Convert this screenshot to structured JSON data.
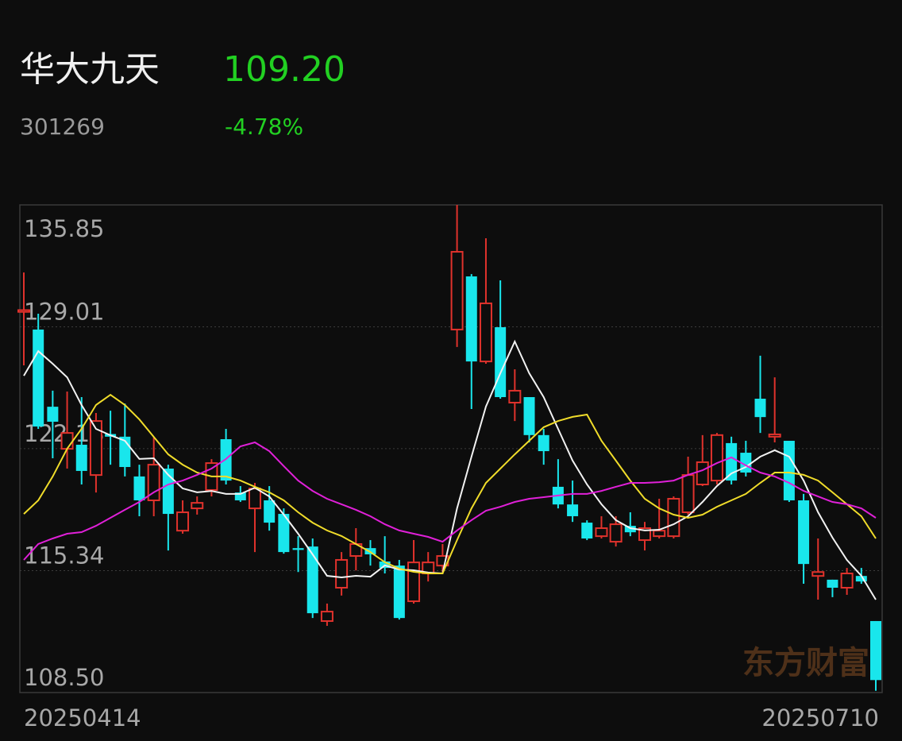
{
  "header": {
    "name": "华大九天",
    "price": "109.20",
    "code": "301269",
    "change": "-4.78%"
  },
  "watermark": "东方财富",
  "chart_data": {
    "type": "candlestick",
    "categories": [
      "20250414",
      null,
      null,
      null,
      null,
      null,
      null,
      null,
      null,
      null,
      null,
      null,
      null,
      null,
      null,
      null,
      null,
      null,
      null,
      null,
      null,
      null,
      null,
      null,
      null,
      null,
      null,
      null,
      null,
      null,
      null,
      null,
      null,
      null,
      null,
      null,
      null,
      null,
      null,
      null,
      null,
      null,
      null,
      null,
      null,
      null,
      null,
      null,
      null,
      null,
      null,
      null,
      null,
      null,
      null,
      null,
      null,
      null,
      null,
      "20250710"
    ],
    "open": [
      129.85,
      128.86,
      124.53,
      122.17,
      122.4,
      120.7,
      123.0,
      122.85,
      120.62,
      119.28,
      121.06,
      117.58,
      118.83,
      119.86,
      122.71,
      119.72,
      118.83,
      119.28,
      118.52,
      116.6,
      116.69,
      112.51,
      114.38,
      116.16,
      116.6,
      115.85,
      115.62,
      113.62,
      115.18,
      115.62,
      128.86,
      131.84,
      127.07,
      128.99,
      124.76,
      125.07,
      122.94,
      120.04,
      119.05,
      118.03,
      117.27,
      116.96,
      117.85,
      117.05,
      117.27,
      117.27,
      118.61,
      120.17,
      120.39,
      122.49,
      121.95,
      124.98,
      122.85,
      122.62,
      119.28,
      115.04,
      114.83,
      114.38,
      115.04,
      112.51
    ],
    "high": [
      132.06,
      129.75,
      125.43,
      125.38,
      125.07,
      124.18,
      124.31,
      124.71,
      121.28,
      122.85,
      121.28,
      119.28,
      119.5,
      121.59,
      123.29,
      120.08,
      120.26,
      120.08,
      118.83,
      117.27,
      117.14,
      113.49,
      116.38,
      117.72,
      117.05,
      117.27,
      115.94,
      117.05,
      116.38,
      116.83,
      135.85,
      131.97,
      133.98,
      131.62,
      126.63,
      125.07,
      123.29,
      121.59,
      120.39,
      118.16,
      118.39,
      118.39,
      118.61,
      118.07,
      119.37,
      119.5,
      121.73,
      122.94,
      123.06,
      122.85,
      122.62,
      127.39,
      126.18,
      122.62,
      119.64,
      117.14,
      114.83,
      115.49,
      115.49,
      112.51
    ],
    "low": [
      126.85,
      123.29,
      121.64,
      121.06,
      120.17,
      119.72,
      121.28,
      120.62,
      118.39,
      118.39,
      116.47,
      117.41,
      118.48,
      119.5,
      120.17,
      119.19,
      116.38,
      117.58,
      116.29,
      115.26,
      112.68,
      112.24,
      113.94,
      115.35,
      115.62,
      115.18,
      112.59,
      113.49,
      114.73,
      115.26,
      127.88,
      124.4,
      126.94,
      124.98,
      123.73,
      122.53,
      121.28,
      118.83,
      118.07,
      117.05,
      117.14,
      116.69,
      117.27,
      116.47,
      117.14,
      117.14,
      118.48,
      120.08,
      120.17,
      120.17,
      120.62,
      123.06,
      122.53,
      119.19,
      114.6,
      113.71,
      113.85,
      113.98,
      114.6,
      108.6
    ],
    "close": [
      129.95,
      123.42,
      123.69,
      123.06,
      120.93,
      123.73,
      122.85,
      121.15,
      119.28,
      121.28,
      118.52,
      118.61,
      119.14,
      121.37,
      120.39,
      119.28,
      119.94,
      118.03,
      116.38,
      116.5,
      112.95,
      113.04,
      115.94,
      116.83,
      116.25,
      115.49,
      112.68,
      115.8,
      115.8,
      116.16,
      133.22,
      127.07,
      130.33,
      125.07,
      125.43,
      122.94,
      122.04,
      119.05,
      118.39,
      117.14,
      117.72,
      117.94,
      117.49,
      117.72,
      117.58,
      119.37,
      120.7,
      121.42,
      122.94,
      120.39,
      120.84,
      123.95,
      122.98,
      119.28,
      115.71,
      115.26,
      114.38,
      115.18,
      114.73,
      109.2
    ],
    "up_color": "#e0322c",
    "down_color": "#19e6ec",
    "lines": [
      {
        "color": "#f2f2f2",
        "values": [
          126.27,
          127.65,
          126.94,
          126.18,
          124.63,
          123.29,
          122.93,
          122.62,
          121.6,
          121.64,
          120.71,
          119.95,
          119.73,
          119.81,
          119.64,
          119.64,
          119.99,
          119.5,
          118.48,
          117.41,
          116.25,
          115.05,
          114.96,
          115.05,
          115.0,
          115.63,
          115.4,
          115.36,
          115.23,
          115.18,
          118.83,
          121.73,
          124.54,
          126.41,
          128.19,
          126.41,
          125.07,
          123.29,
          121.51,
          120.17,
          119.06,
          118.17,
          117.72,
          117.59,
          117.63,
          117.94,
          118.39,
          119.19,
          120.08,
          120.79,
          121.15,
          121.73,
          122.09,
          121.73,
          120.39,
          118.61,
          117.19,
          115.94,
          115.05,
          113.71
        ]
      },
      {
        "color": "#f0dc2a",
        "values": [
          118.52,
          119.28,
          120.62,
          122.18,
          123.29,
          124.63,
          125.2,
          124.63,
          123.82,
          122.84,
          121.86,
          121.28,
          120.84,
          120.62,
          120.62,
          120.39,
          120.04,
          119.73,
          119.28,
          118.61,
          118.03,
          117.59,
          117.28,
          116.83,
          116.38,
          115.81,
          115.45,
          115.27,
          115.18,
          115.18,
          117.05,
          118.83,
          120.26,
          121.06,
          121.86,
          122.62,
          123.38,
          123.73,
          123.96,
          124.09,
          122.62,
          121.51,
          120.39,
          119.37,
          118.83,
          118.48,
          118.3,
          118.48,
          118.92,
          119.28,
          119.64,
          120.26,
          120.84,
          120.84,
          120.71,
          120.39,
          119.73,
          119.06,
          118.39,
          117.14
        ]
      },
      {
        "color": "#e020d8",
        "values": [
          115.94,
          116.83,
          117.14,
          117.41,
          117.5,
          117.85,
          118.3,
          118.75,
          119.19,
          119.73,
          120.17,
          120.39,
          120.71,
          121.06,
          121.6,
          122.31,
          122.53,
          122.04,
          121.2,
          120.39,
          119.81,
          119.37,
          119.06,
          118.75,
          118.39,
          117.94,
          117.59,
          117.41,
          117.23,
          116.96,
          117.59,
          118.17,
          118.7,
          118.92,
          119.19,
          119.37,
          119.46,
          119.55,
          119.64,
          119.64,
          119.81,
          120.04,
          120.26,
          120.26,
          120.3,
          120.39,
          120.71,
          120.97,
          121.37,
          121.69,
          121.24,
          120.84,
          120.62,
          120.26,
          119.81,
          119.5,
          119.19,
          119.06,
          118.83,
          118.3
        ]
      }
    ],
    "ylim": [
      108.5,
      135.85
    ],
    "yticks": [
      {
        "value": 108.5,
        "label": "108.50"
      },
      115.34,
      122.18,
      129.01,
      135.85
    ],
    "grid": true
  }
}
